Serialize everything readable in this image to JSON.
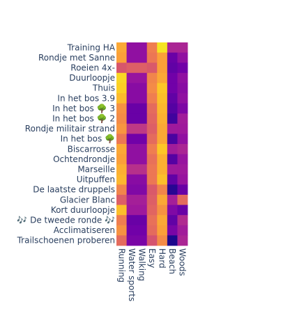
{
  "chart_data": {
    "type": "heatmap",
    "title": "",
    "xlabel": "",
    "ylabel": "",
    "colorscale": "plasma",
    "x_categories": [
      "Running",
      "Water sports",
      "Walking",
      "Easy",
      "Hard",
      "Beach",
      "Woods"
    ],
    "y_categories": [
      "Training HA",
      "Rondje met Sanne",
      "Roeien 4x-",
      "Duurloopje",
      "Thuis",
      "In het bos 3.9",
      "In het bos 🌳 3",
      "In het bos 🌳 2",
      "Rondje militair strand",
      "In het bos 🌳",
      "Biscarrosse",
      "Ochtendrondje",
      "Marseille",
      "Uitpuffen",
      "De laatste druppels",
      "Glacier Blanc",
      "Kort duurloopje",
      "🎶 De tweede ronde 🎶",
      "Acclimatiseren",
      "Trailschoenen proberen"
    ],
    "z": [
      [
        0.8,
        0.3,
        0.3,
        0.68,
        0.95,
        0.38,
        0.38
      ],
      [
        0.78,
        0.3,
        0.3,
        0.66,
        0.78,
        0.2,
        0.3
      ],
      [
        0.55,
        0.58,
        0.58,
        0.56,
        0.78,
        0.18,
        0.22
      ],
      [
        0.92,
        0.32,
        0.32,
        0.7,
        0.8,
        0.22,
        0.3
      ],
      [
        0.9,
        0.28,
        0.28,
        0.72,
        0.88,
        0.22,
        0.28
      ],
      [
        0.85,
        0.28,
        0.28,
        0.68,
        0.86,
        0.18,
        0.3
      ],
      [
        0.74,
        0.2,
        0.2,
        0.62,
        0.84,
        0.15,
        0.25
      ],
      [
        0.72,
        0.2,
        0.2,
        0.6,
        0.82,
        0.1,
        0.35
      ],
      [
        0.75,
        0.45,
        0.45,
        0.58,
        0.8,
        0.34,
        0.34
      ],
      [
        0.66,
        0.22,
        0.22,
        0.62,
        0.8,
        0.12,
        0.3
      ],
      [
        0.8,
        0.3,
        0.3,
        0.68,
        0.88,
        0.35,
        0.38
      ],
      [
        0.78,
        0.3,
        0.3,
        0.64,
        0.82,
        0.15,
        0.32
      ],
      [
        0.82,
        0.42,
        0.42,
        0.66,
        0.82,
        0.34,
        0.34
      ],
      [
        0.84,
        0.28,
        0.28,
        0.66,
        0.86,
        0.18,
        0.32
      ],
      [
        0.7,
        0.26,
        0.26,
        0.56,
        0.7,
        0.05,
        0.2
      ],
      [
        0.58,
        0.36,
        0.36,
        0.58,
        0.8,
        0.36,
        0.62
      ],
      [
        0.86,
        0.34,
        0.34,
        0.6,
        0.74,
        0.26,
        0.2
      ],
      [
        0.68,
        0.2,
        0.2,
        0.64,
        0.8,
        0.18,
        0.4
      ],
      [
        0.74,
        0.22,
        0.22,
        0.62,
        0.78,
        0.24,
        0.35
      ],
      [
        0.62,
        0.24,
        0.24,
        0.54,
        0.72,
        0.03,
        0.38
      ]
    ]
  }
}
